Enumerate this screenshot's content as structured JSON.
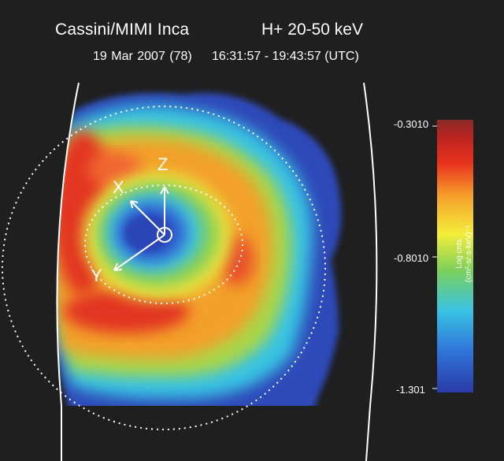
{
  "header": {
    "instrument": "Cassini/MIMI Inca",
    "species_energy": "H+  20-50 keV",
    "date": "19 Mar 2007 (78)",
    "time_range": "16:31:57 - 19:43:57 (UTC)"
  },
  "axes": {
    "x_label": "X",
    "y_label": "Y",
    "z_label": "Z"
  },
  "colorbar": {
    "max_label": "-0.3010",
    "mid_label": "-0.8010",
    "min_label": "-1.301",
    "title": "Log cnts",
    "units": "(cm²-sr-s-keV)⁻¹",
    "colors": [
      "#2b3aa6",
      "#2f73d8",
      "#39c3e3",
      "#7ed05a",
      "#f3ee3a",
      "#f7a02b",
      "#e8321e",
      "#bf2520",
      "#8b2a2a"
    ]
  },
  "colors": {
    "background": "#1f1f1f",
    "frame_line": "#ffffff"
  }
}
